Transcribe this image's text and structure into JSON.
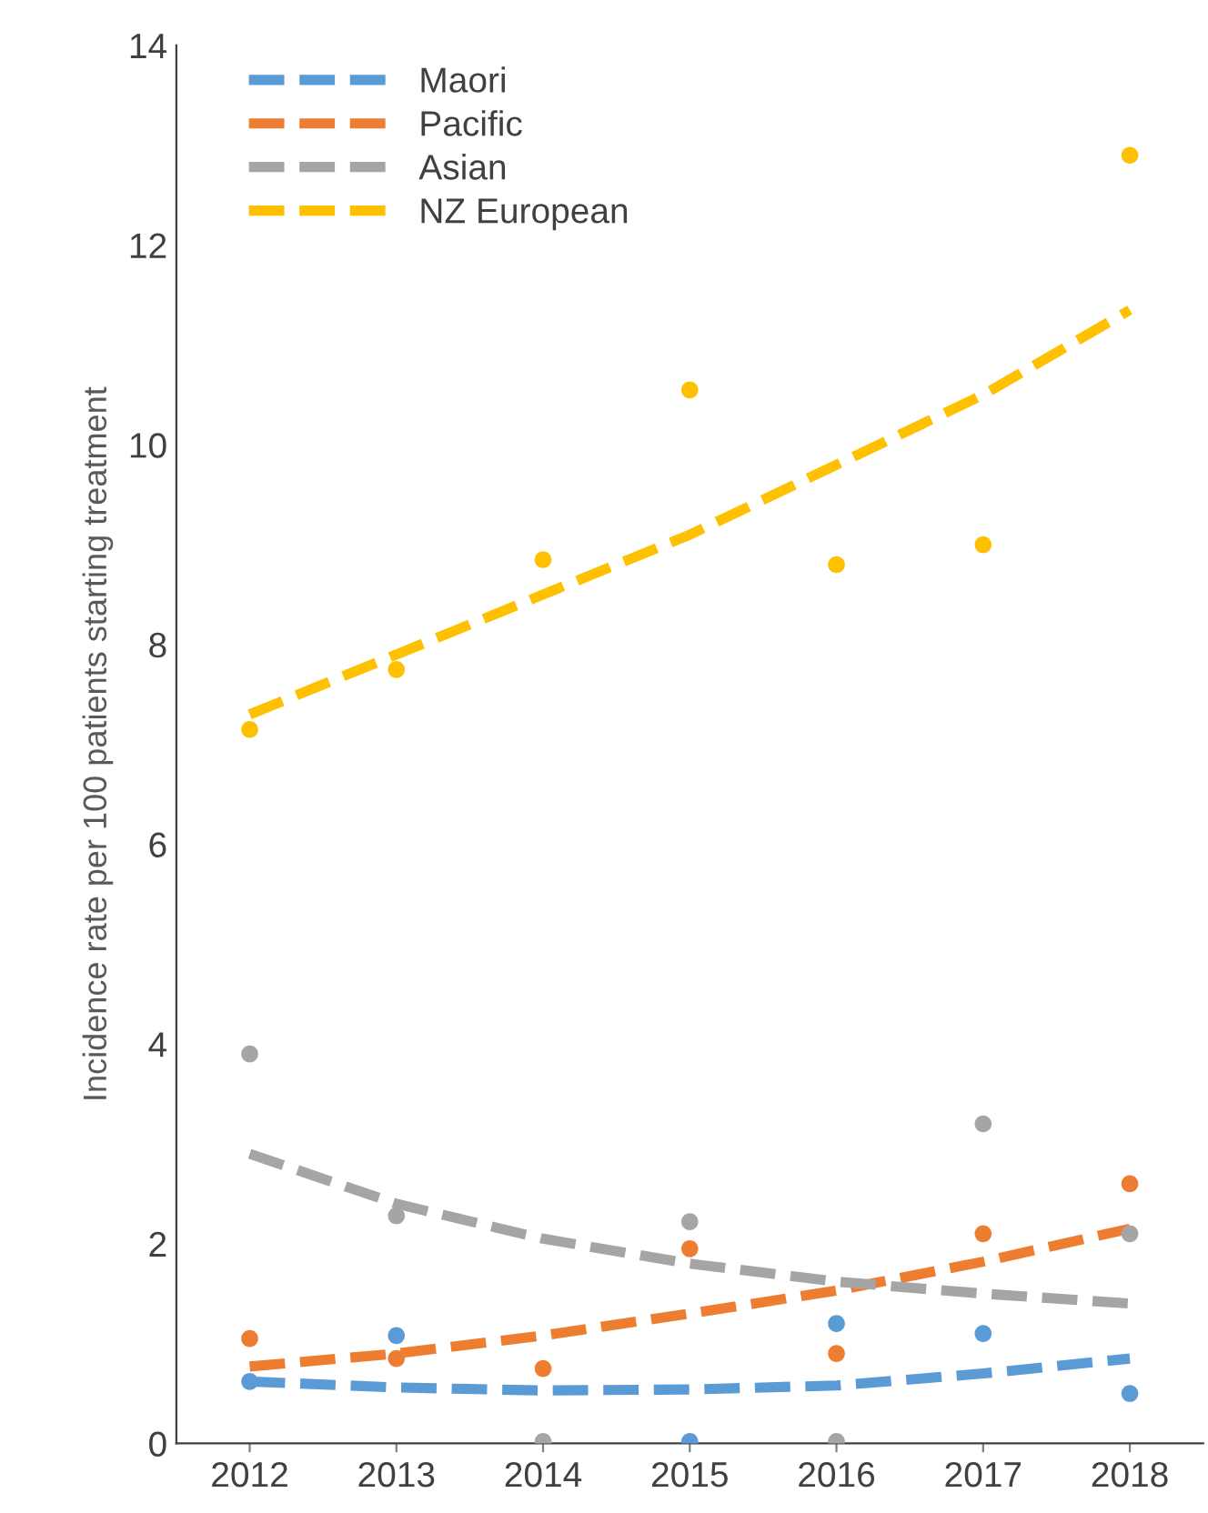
{
  "chart_data": {
    "type": "scatter",
    "ylabel": "Incidence rate per 100 patients starting treatment",
    "categories": [
      "2012",
      "2013",
      "2014",
      "2015",
      "2016",
      "2017",
      "2018"
    ],
    "ylim": [
      0,
      14
    ],
    "yticks": [
      0,
      2,
      4,
      6,
      8,
      10,
      12,
      14
    ],
    "grid": false,
    "legend": "top left",
    "series": [
      {
        "color": "#5b9bd5",
        "marker": "circle",
        "values": [
          0.62,
          1.08,
          null,
          0.02,
          1.2,
          1.1,
          0.5
        ]
      },
      {
        "color": "#ed7d31",
        "marker": "circle",
        "values": [
          1.05,
          0.85,
          0.75,
          1.95,
          0.9,
          2.1,
          2.6
        ]
      },
      {
        "color": "#a5a5a5",
        "marker": "circle",
        "values": [
          3.9,
          2.28,
          0.02,
          2.22,
          0.02,
          3.2,
          2.1
        ]
      },
      {
        "color": "#ffc000",
        "marker": "circle",
        "values": [
          7.15,
          7.75,
          8.85,
          10.55,
          8.8,
          9.0,
          12.9
        ]
      },
      {
        "type": "line",
        "name": "Maori",
        "color": "#5b9bd5",
        "line_style": "dashed",
        "values": [
          0.62,
          0.56,
          0.53,
          0.54,
          0.58,
          0.7,
          0.85
        ]
      },
      {
        "type": "line",
        "name": "Pacific",
        "color": "#ed7d31",
        "line_style": "dashed",
        "values": [
          0.77,
          0.9,
          1.08,
          1.3,
          1.53,
          1.82,
          2.15
        ]
      },
      {
        "type": "line",
        "name": "Asian",
        "color": "#a5a5a5",
        "line_style": "dashed",
        "values": [
          2.9,
          2.4,
          2.05,
          1.8,
          1.62,
          1.5,
          1.4
        ]
      },
      {
        "type": "line",
        "name": "NZ European",
        "color": "#ffc000",
        "line_style": "dashed",
        "values": [
          7.3,
          7.9,
          8.5,
          9.1,
          9.8,
          10.5,
          11.35
        ]
      }
    ]
  }
}
